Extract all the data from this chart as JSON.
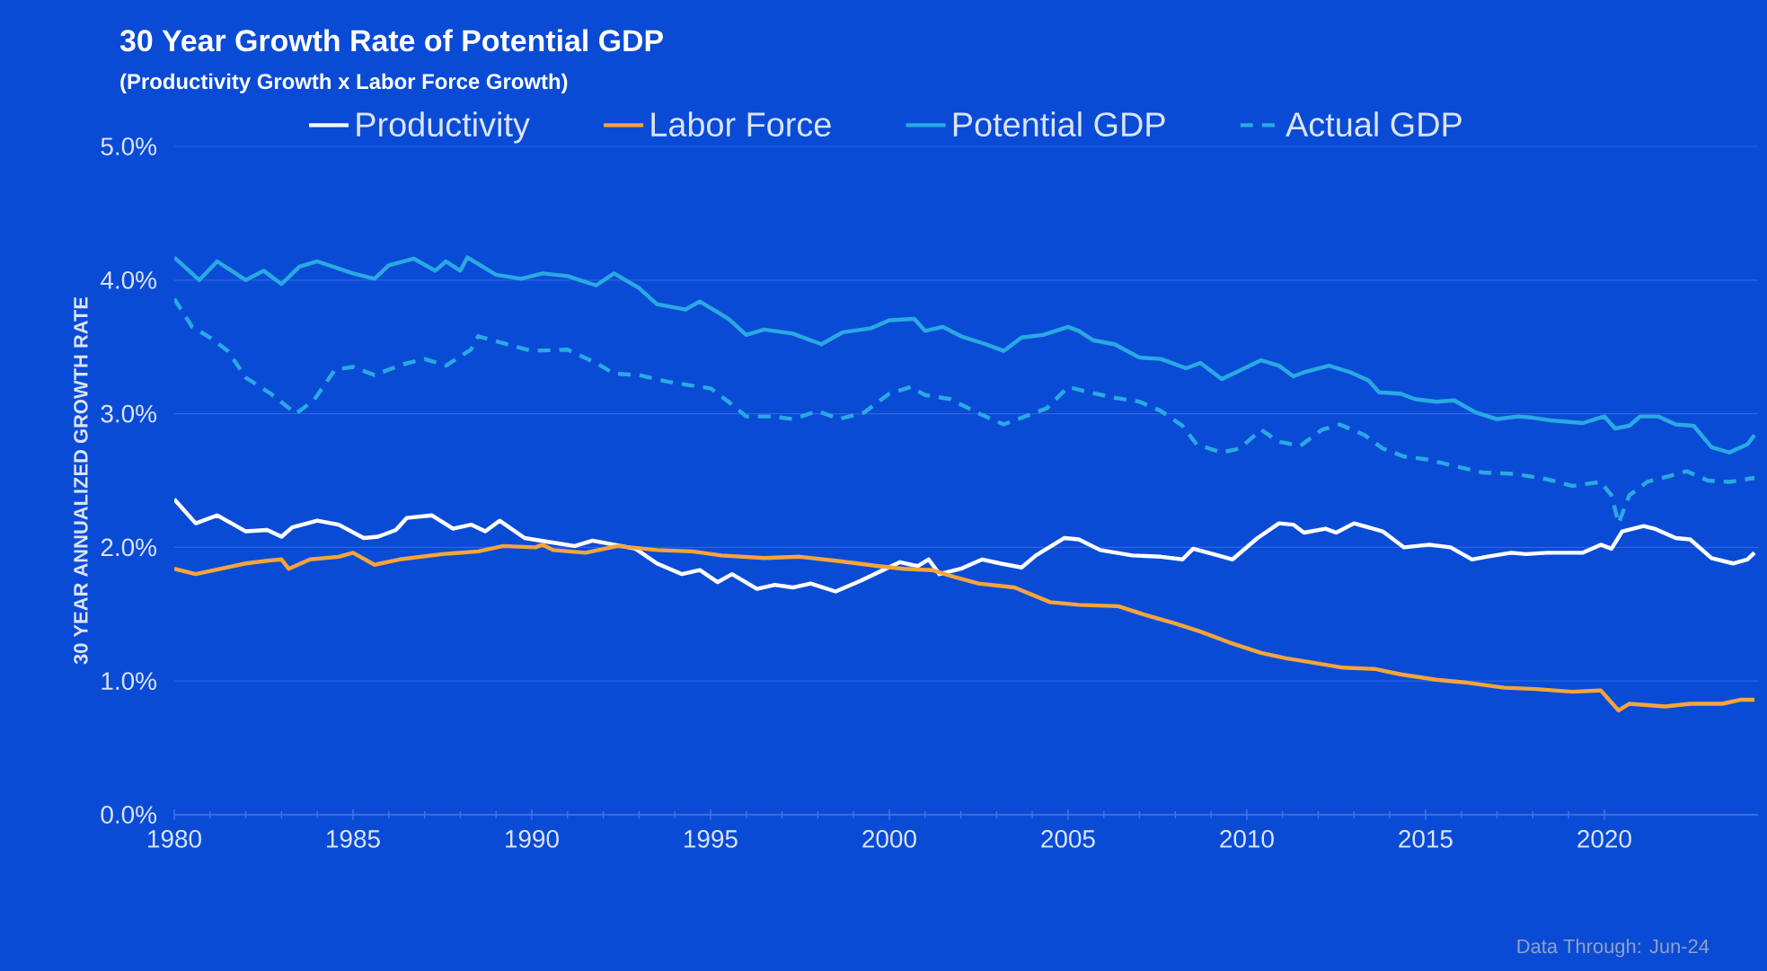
{
  "chart_data": {
    "type": "line",
    "title": "30 Year Growth Rate of Potential GDP",
    "subtitle": "(Productivity Growth x Labor Force Growth)",
    "ylabel": "30 YEAR  ANNUALIZED GROWTH RATE",
    "annotations": [
      "Data Through:  Jun-24"
    ],
    "xlim": [
      1980,
      2024.3
    ],
    "xticks": [
      1980,
      1985,
      1990,
      1995,
      2000,
      2005,
      2010,
      2015,
      2020
    ],
    "ylim": [
      0,
      5
    ],
    "yticks": [
      {
        "value": 0,
        "label": "0.0%"
      },
      {
        "value": 1,
        "label": "1.0%"
      },
      {
        "value": 2,
        "label": "2.0%"
      },
      {
        "value": 3,
        "label": "3.0%"
      },
      {
        "value": 4,
        "label": "4.0%"
      },
      {
        "value": 5,
        "label": "5.0%"
      }
    ],
    "grid": "y",
    "legend": "top",
    "series": [
      {
        "name": "Productivity",
        "color": "#ffffff",
        "line_style": "solid",
        "x": [
          1980,
          1980.6,
          1981.2,
          1982,
          1982.6,
          1983,
          1983.3,
          1984,
          1984.6,
          1985.3,
          1985.7,
          1986.2,
          1986.5,
          1987.2,
          1987.8,
          1988.3,
          1988.7,
          1989.1,
          1989.8,
          1990.5,
          1991.2,
          1991.7,
          1992.3,
          1992.9,
          1993.5,
          1994.2,
          1994.7,
          1995.2,
          1995.6,
          1996.3,
          1996.8,
          1997.3,
          1997.8,
          1998.5,
          1999.2,
          1999.9,
          2000.3,
          2000.8,
          2001.1,
          2001.4,
          2002,
          2002.6,
          2003.1,
          2003.7,
          2004.1,
          2004.9,
          2005.3,
          2005.9,
          2006.8,
          2007.6,
          2008.2,
          2008.5,
          2009.2,
          2009.6,
          2010.3,
          2010.9,
          2011.3,
          2011.6,
          2012.2,
          2012.5,
          2013,
          2013.8,
          2014.4,
          2015.1,
          2015.7,
          2016.3,
          2016.7,
          2017.4,
          2017.8,
          2018.4,
          2019.4,
          2019.9,
          2020.2,
          2020.5,
          2021.1,
          2021.4,
          2022,
          2022.4,
          2023,
          2023.6,
          2024,
          2024.2
        ],
        "values": [
          2.36,
          2.18,
          2.24,
          2.12,
          2.13,
          2.08,
          2.15,
          2.2,
          2.17,
          2.07,
          2.08,
          2.13,
          2.22,
          2.24,
          2.14,
          2.17,
          2.12,
          2.2,
          2.07,
          2.04,
          2.01,
          2.05,
          2.02,
          1.99,
          1.88,
          1.8,
          1.83,
          1.74,
          1.8,
          1.69,
          1.72,
          1.7,
          1.73,
          1.67,
          1.75,
          1.84,
          1.89,
          1.86,
          1.91,
          1.8,
          1.84,
          1.91,
          1.88,
          1.85,
          1.94,
          2.07,
          2.06,
          1.98,
          1.94,
          1.93,
          1.91,
          1.99,
          1.94,
          1.91,
          2.07,
          2.18,
          2.17,
          2.11,
          2.14,
          2.11,
          2.18,
          2.12,
          2.0,
          2.02,
          2.0,
          1.91,
          1.93,
          1.96,
          1.95,
          1.96,
          1.96,
          2.02,
          1.99,
          2.12,
          2.16,
          2.14,
          2.07,
          2.06,
          1.92,
          1.88,
          1.91,
          1.96
        ]
      },
      {
        "name": "Labor Force",
        "color": "#f5a53a",
        "line_style": "solid",
        "x": [
          1980,
          1980.6,
          1981.3,
          1982,
          1982.6,
          1983,
          1983.2,
          1983.8,
          1984.6,
          1985,
          1985.6,
          1986.3,
          1987.5,
          1988.5,
          1989.2,
          1990.1,
          1990.3,
          1990.6,
          1991.5,
          1992.4,
          1993.5,
          1994.5,
          1995.3,
          1996.5,
          1997.5,
          1998.5,
          1999.7,
          2000.4,
          2001.2,
          2001.8,
          2002.5,
          2003.5,
          2004.5,
          2005.3,
          2006.4,
          2007.1,
          2008,
          2008.7,
          2009.5,
          2010.4,
          2011.1,
          2011.8,
          2012.7,
          2013.6,
          2014.3,
          2015.3,
          2016.1,
          2017.2,
          2018.1,
          2019.1,
          2019.9,
          2020.4,
          2020.7,
          2021.7,
          2022.4,
          2023.3,
          2023.8,
          2024.2
        ],
        "values": [
          1.84,
          1.8,
          1.84,
          1.88,
          1.9,
          1.91,
          1.84,
          1.91,
          1.93,
          1.96,
          1.87,
          1.91,
          1.95,
          1.97,
          2.01,
          2.0,
          2.02,
          1.98,
          1.96,
          2.01,
          1.98,
          1.97,
          1.94,
          1.92,
          1.93,
          1.9,
          1.86,
          1.84,
          1.83,
          1.78,
          1.73,
          1.7,
          1.59,
          1.57,
          1.56,
          1.5,
          1.43,
          1.37,
          1.29,
          1.21,
          1.17,
          1.14,
          1.1,
          1.09,
          1.05,
          1.01,
          0.99,
          0.95,
          0.94,
          0.92,
          0.93,
          0.78,
          0.83,
          0.81,
          0.83,
          0.83,
          0.86,
          0.86
        ]
      },
      {
        "name": "Potential GDP",
        "color": "#29aae2",
        "line_style": "solid",
        "x": [
          1980,
          1980.7,
          1981.2,
          1982,
          1982.5,
          1983,
          1983.5,
          1984,
          1985,
          1985.6,
          1986,
          1986.7,
          1987.3,
          1987.6,
          1988,
          1988.2,
          1989,
          1989.7,
          1990.3,
          1991,
          1991.8,
          1992.3,
          1993,
          1993.5,
          1994.3,
          1994.7,
          1995.5,
          1996,
          1996.5,
          1997.3,
          1998.1,
          1998.7,
          1999.5,
          2000,
          2000.7,
          2001,
          2001.5,
          2002,
          2002.7,
          2003.2,
          2003.7,
          2004.3,
          2005,
          2005.3,
          2005.7,
          2006.3,
          2007,
          2007.6,
          2008.3,
          2008.7,
          2009.3,
          2009.7,
          2010.4,
          2010.9,
          2011.3,
          2011.6,
          2012.3,
          2012.9,
          2013.4,
          2013.7,
          2014.3,
          2014.7,
          2015.3,
          2015.8,
          2016.4,
          2017,
          2017.6,
          2018,
          2018.5,
          2019.4,
          2020,
          2020.3,
          2020.7,
          2021,
          2021.5,
          2022,
          2022.5,
          2023,
          2023.5,
          2024,
          2024.2
        ],
        "values": [
          4.17,
          4.0,
          4.14,
          4.0,
          4.07,
          3.97,
          4.1,
          4.14,
          4.05,
          4.01,
          4.11,
          4.16,
          4.07,
          4.14,
          4.07,
          4.17,
          4.04,
          4.01,
          4.05,
          4.03,
          3.96,
          4.05,
          3.94,
          3.82,
          3.78,
          3.84,
          3.71,
          3.59,
          3.63,
          3.6,
          3.52,
          3.61,
          3.64,
          3.7,
          3.71,
          3.62,
          3.65,
          3.58,
          3.52,
          3.47,
          3.57,
          3.59,
          3.65,
          3.62,
          3.55,
          3.52,
          3.42,
          3.41,
          3.34,
          3.38,
          3.26,
          3.31,
          3.4,
          3.36,
          3.28,
          3.31,
          3.36,
          3.31,
          3.25,
          3.16,
          3.15,
          3.11,
          3.09,
          3.1,
          3.01,
          2.96,
          2.98,
          2.97,
          2.95,
          2.93,
          2.98,
          2.89,
          2.91,
          2.98,
          2.98,
          2.92,
          2.91,
          2.75,
          2.71,
          2.77,
          2.84
        ]
      },
      {
        "name": "Actual GDP",
        "color": "#29aae2",
        "line_style": "dashed",
        "x": [
          1980,
          1980.5,
          1981,
          1981.5,
          1982,
          1982.7,
          1983.4,
          1983.9,
          1984.5,
          1985,
          1985.6,
          1986.4,
          1987,
          1987.6,
          1988.3,
          1988.5,
          1989.3,
          1990,
          1991,
          1991.8,
          1992.3,
          1993,
          1993.8,
          1994.5,
          1995,
          1995.5,
          1996,
          1996.7,
          1997.3,
          1998,
          1998.6,
          1999.3,
          2000,
          2000.6,
          2001,
          2001.7,
          2002.6,
          2003.2,
          2003.8,
          2004.4,
          2005,
          2005.6,
          2006.3,
          2007,
          2007.6,
          2008.2,
          2008.6,
          2009.3,
          2009.8,
          2010.4,
          2010.9,
          2011.5,
          2012.1,
          2012.6,
          2013.3,
          2013.8,
          2014.4,
          2015,
          2015.8,
          2016.6,
          2017.5,
          2018.4,
          2019.1,
          2019.9,
          2020.2,
          2020.4,
          2020.7,
          2021.2,
          2021.9,
          2022.3,
          2022.9,
          2023.5,
          2024.2
        ],
        "values": [
          3.86,
          3.65,
          3.57,
          3.47,
          3.27,
          3.15,
          3.0,
          3.1,
          3.33,
          3.35,
          3.29,
          3.37,
          3.41,
          3.36,
          3.48,
          3.58,
          3.52,
          3.47,
          3.48,
          3.38,
          3.3,
          3.29,
          3.24,
          3.21,
          3.19,
          3.09,
          2.98,
          2.98,
          2.96,
          3.02,
          2.96,
          3.01,
          3.15,
          3.2,
          3.14,
          3.11,
          2.99,
          2.92,
          2.98,
          3.04,
          3.2,
          3.16,
          3.12,
          3.09,
          3.02,
          2.91,
          2.77,
          2.71,
          2.74,
          2.88,
          2.79,
          2.76,
          2.88,
          2.92,
          2.84,
          2.74,
          2.68,
          2.66,
          2.61,
          2.56,
          2.55,
          2.51,
          2.46,
          2.49,
          2.39,
          2.18,
          2.39,
          2.49,
          2.54,
          2.57,
          2.5,
          2.49,
          2.52
        ]
      }
    ]
  }
}
